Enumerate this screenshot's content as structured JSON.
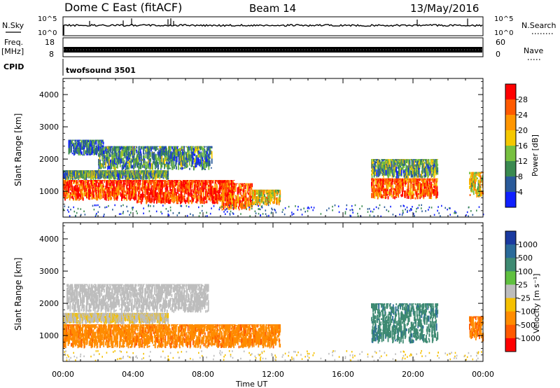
{
  "header": {
    "station": "Dome C East (fitACF)",
    "beam": "Beam 14",
    "date": "13/May/2016"
  },
  "panels": {
    "nsky_label": "N.Sky",
    "nsky_ticks": [
      "10^5",
      "10^0"
    ],
    "nsearch_label": "N.Search",
    "freq_label_1": "Freq.",
    "freq_label_2": "[MHz]",
    "freq_ticks": [
      "18",
      "8"
    ],
    "nave_ticks": [
      "60",
      "0"
    ],
    "nave_label": "Nave",
    "cpid_label": "CPID",
    "cpid_value": "twofsound 3501"
  },
  "colorbars": {
    "power": {
      "label": "Power [dB]",
      "ticks": [
        "28",
        "24",
        "20",
        "16",
        "12",
        "8",
        "4"
      ],
      "colors": [
        "#ff0000",
        "#ff5a00",
        "#ff9600",
        "#f5c800",
        "#77c040",
        "#3a8a50",
        "#2a5a9a",
        "#1020ff"
      ]
    },
    "velocity": {
      "label": "Velocity [m s⁻¹]",
      "ticks": [
        "1000",
        "500",
        "100",
        "25",
        "-25",
        "-100",
        "-500",
        "-1000"
      ],
      "colors": [
        "#1a3aa0",
        "#2a6a9a",
        "#3e8a72",
        "#60c040",
        "#bdbdbd",
        "#f5c000",
        "#ff8c00",
        "#ff5a00",
        "#ff0000"
      ]
    }
  },
  "chart_data": {
    "type": "heatmap",
    "xlabel": "Time UT",
    "x_ticks": [
      "00:00",
      "04:00",
      "08:00",
      "12:00",
      "16:00",
      "20:00",
      "00:00"
    ],
    "ylabel": "Slant Range [km]",
    "y_ticks": [
      "1000",
      "2000",
      "3000",
      "4000"
    ],
    "ylim": [
      200,
      4500
    ],
    "xlim_hours": [
      0,
      24
    ],
    "power_patches": [
      {
        "t0": 0.0,
        "t1": 4.2,
        "r0": 700,
        "r1": 1350,
        "level": 0.85
      },
      {
        "t0": 4.2,
        "t1": 9.8,
        "r0": 600,
        "r1": 1350,
        "level": 0.9
      },
      {
        "t0": 9.0,
        "t1": 10.8,
        "r0": 400,
        "r1": 1250,
        "level": 0.8
      },
      {
        "t0": 10.8,
        "t1": 12.4,
        "r0": 550,
        "r1": 1050,
        "level": 0.55
      },
      {
        "t0": 0.0,
        "t1": 6.0,
        "r0": 1350,
        "r1": 1650,
        "level": 0.35
      },
      {
        "t0": 2.0,
        "t1": 8.5,
        "r0": 1650,
        "r1": 2400,
        "level": 0.3
      },
      {
        "t0": 0.3,
        "t1": 2.3,
        "r0": 2100,
        "r1": 2600,
        "level": 0.25
      },
      {
        "t0": 17.6,
        "t1": 21.4,
        "r0": 750,
        "r1": 1400,
        "level": 0.8
      },
      {
        "t0": 17.6,
        "t1": 21.4,
        "r0": 1400,
        "r1": 2000,
        "level": 0.35
      },
      {
        "t0": 23.2,
        "t1": 24.0,
        "r0": 800,
        "r1": 1600,
        "level": 0.55
      }
    ],
    "velocity_patches": [
      {
        "t0": 0.0,
        "t1": 12.4,
        "r0": 600,
        "r1": 1350,
        "vel": -200
      },
      {
        "t0": 0.0,
        "t1": 6.0,
        "r0": 1350,
        "r1": 1700,
        "vel": -20
      },
      {
        "t0": 0.2,
        "t1": 8.3,
        "r0": 1700,
        "r1": 2600,
        "vel": 10
      },
      {
        "t0": 17.6,
        "t1": 21.4,
        "r0": 750,
        "r1": 2000,
        "vel": 200
      },
      {
        "t0": 23.2,
        "t1": 24.0,
        "r0": 800,
        "r1": 1600,
        "vel": -250
      }
    ]
  }
}
